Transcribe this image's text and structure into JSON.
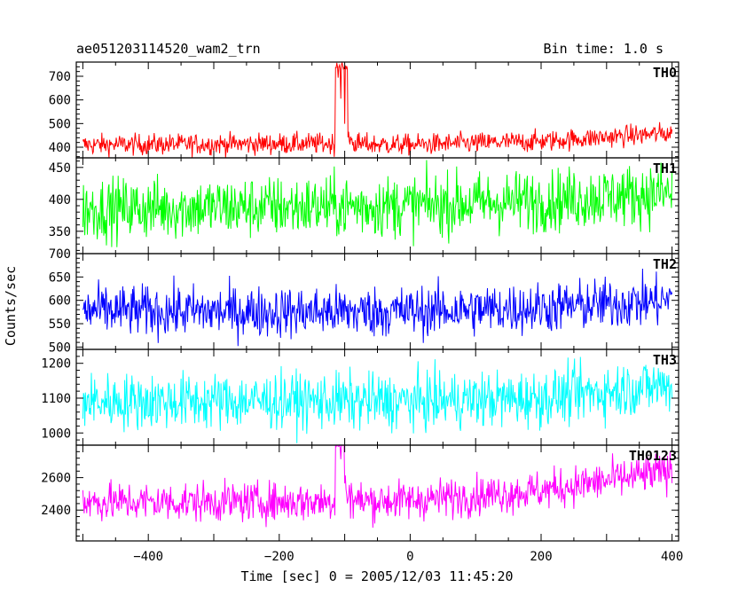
{
  "chart_data": {
    "type": "line",
    "title": "ae051203114520_wam2_trn",
    "bin_time_label": "Bin time: 1.0 s",
    "xlabel": "Time [sec] 0 = 2005/12/03 11:45:20",
    "ylabel": "Counts/sec",
    "xlim": [
      -510,
      410
    ],
    "x_ticks": [
      -400,
      -200,
      0,
      200,
      400
    ],
    "x_tick_labels": [
      "−400",
      "−200",
      "0",
      "200",
      "400"
    ],
    "x_range": [
      -500,
      400
    ],
    "panels": [
      {
        "name": "TH0",
        "color": "#ff0000",
        "ylim": [
          355,
          760
        ],
        "y_ticks": [
          400,
          500,
          600,
          700
        ],
        "y_tick_labels": [
          "400",
          "500",
          "600",
          "700"
        ],
        "baseline": [
          [
            -500,
            410
          ],
          [
            -200,
            415
          ],
          [
            -120,
            415
          ],
          [
            0,
            410
          ],
          [
            200,
            425
          ],
          [
            400,
            460
          ]
        ],
        "noise": 22,
        "spikes": [
          [
            -114,
            740
          ],
          [
            -112,
            760
          ],
          [
            -110,
            690
          ],
          [
            -106,
            600
          ],
          [
            -100,
            500
          ],
          [
            -95,
            440
          ]
        ],
        "clip": [
          355,
          760
        ]
      },
      {
        "name": "TH1",
        "color": "#00ff00",
        "ylim": [
          315,
          465
        ],
        "y_ticks": [
          350,
          400,
          450
        ],
        "y_tick_labels": [
          "350",
          "400",
          "450"
        ],
        "baseline": [
          [
            -500,
            385
          ],
          [
            -200,
            388
          ],
          [
            0,
            390
          ],
          [
            200,
            398
          ],
          [
            400,
            410
          ]
        ],
        "noise": 24,
        "spikes": [],
        "clip": [
          315,
          465
        ]
      },
      {
        "name": "TH2",
        "color": "#0000ff",
        "ylim": [
          495,
          700
        ],
        "y_ticks": [
          500,
          550,
          600,
          650,
          700
        ],
        "y_tick_labels": [
          "500",
          "550",
          "600",
          "650",
          "700"
        ],
        "baseline": [
          [
            -500,
            578
          ],
          [
            -200,
            575
          ],
          [
            0,
            576
          ],
          [
            200,
            584
          ],
          [
            400,
            600
          ]
        ],
        "noise": 27,
        "spikes": [],
        "clip": [
          495,
          700
        ]
      },
      {
        "name": "TH3",
        "color": "#00ffff",
        "ylim": [
          965,
          1240
        ],
        "y_ticks": [
          1000,
          1100,
          1200
        ],
        "y_tick_labels": [
          "1000",
          "1100",
          "1200"
        ],
        "baseline": [
          [
            -500,
            1090
          ],
          [
            -200,
            1092
          ],
          [
            0,
            1090
          ],
          [
            200,
            1100
          ],
          [
            400,
            1140
          ]
        ],
        "noise": 40,
        "spikes": [],
        "clip": [
          965,
          1240
        ]
      },
      {
        "name": "TH0123",
        "color": "#ff00ff",
        "ylim": [
          2210,
          2800
        ],
        "y_ticks": [
          2400,
          2600
        ],
        "y_tick_labels": [
          "2400",
          "2600"
        ],
        "baseline": [
          [
            -500,
            2450
          ],
          [
            -200,
            2450
          ],
          [
            -120,
            2455
          ],
          [
            0,
            2460
          ],
          [
            200,
            2520
          ],
          [
            400,
            2640
          ]
        ],
        "noise": 60,
        "spikes": [
          [
            -114,
            2810
          ],
          [
            -112,
            2810
          ],
          [
            -110,
            2790
          ],
          [
            -106,
            2700
          ],
          [
            -100,
            2560
          ]
        ],
        "clip": [
          2210,
          2800
        ]
      }
    ]
  }
}
